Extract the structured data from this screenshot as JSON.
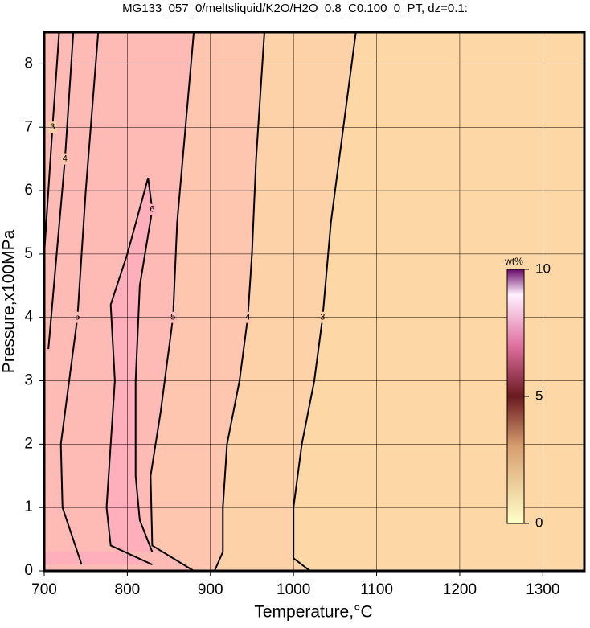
{
  "chart_data": {
    "type": "contour",
    "title": "MG133_057_0/meltsliquid/K2O/H2O_0.8_C0.100_0_PT, dz=0.1:",
    "xlabel": "Temperature,°C",
    "ylabel": "Pressure,x100MPa",
    "xlim": [
      700,
      1350
    ],
    "ylim": [
      0,
      8.5
    ],
    "xticks": [
      700,
      800,
      900,
      1000,
      1100,
      1200,
      1300
    ],
    "yticks": [
      0,
      1,
      2,
      3,
      4,
      5,
      6,
      7,
      8
    ],
    "grid": true,
    "colorbar_label": "wt%",
    "clim": [
      0,
      10
    ],
    "cticks": [
      0,
      5,
      10
    ],
    "contours": [
      {
        "level": 3,
        "x": [
          1020,
          1000,
          1000,
          1010,
          1025,
          1035,
          1045,
          1060,
          1075
        ],
        "y": [
          0,
          0.2,
          1.0,
          2.0,
          3.0,
          4.0,
          5.5,
          7.0,
          8.5
        ]
      },
      {
        "level": 4,
        "x": [
          905,
          915,
          915,
          920,
          935,
          945,
          950,
          955,
          965
        ],
        "y": [
          0,
          0.3,
          1.0,
          2.0,
          3.0,
          4.0,
          5.0,
          6.5,
          8.5
        ]
      },
      {
        "level": 5,
        "x": [
          880,
          830,
          828,
          840,
          855,
          860,
          870,
          880
        ],
        "y": [
          0,
          0.4,
          1.5,
          2.5,
          4.0,
          5.5,
          7.0,
          8.5
        ]
      },
      {
        "level": 6,
        "x": [
          830,
          780,
          775,
          780,
          785,
          780,
          800,
          825,
          830,
          815,
          810,
          810,
          815,
          830
        ],
        "y": [
          0.1,
          0.4,
          1.0,
          2.0,
          3.0,
          4.2,
          5.0,
          6.2,
          5.7,
          4.5,
          3.0,
          1.5,
          0.8,
          0.3
        ]
      },
      {
        "level": 5,
        "x": [
          745,
          722,
          720,
          740,
          750,
          765
        ],
        "y": [
          0.1,
          1.0,
          2.0,
          4.0,
          6.0,
          8.5
        ]
      },
      {
        "level": 4,
        "x": [
          705,
          715,
          725,
          735
        ],
        "y": [
          3.5,
          5.0,
          6.5,
          8.5
        ]
      },
      {
        "level": 3,
        "x": [
          700,
          710,
          718
        ],
        "y": [
          5.0,
          7.0,
          8.5
        ]
      }
    ]
  }
}
